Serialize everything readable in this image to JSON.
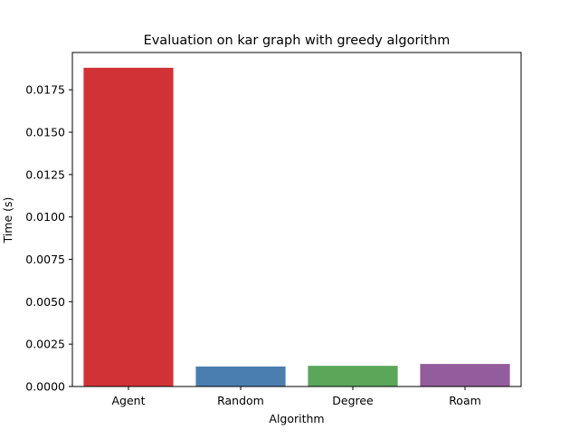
{
  "chart_data": {
    "type": "bar",
    "title": "Evaluation on kar graph with greedy algorithm",
    "xlabel": "Algorithm",
    "ylabel": "Time (s)",
    "categories": [
      "Agent",
      "Random",
      "Degree",
      "Roam"
    ],
    "values": [
      0.0188,
      0.00118,
      0.00122,
      0.00133
    ],
    "colors": [
      "#d03235",
      "#4a7eb0",
      "#5aa75a",
      "#935c9c"
    ],
    "ylim": [
      0,
      0.0197
    ],
    "yticks": [
      0.0,
      0.0025,
      0.005,
      0.0075,
      0.01,
      0.0125,
      0.015,
      0.0175
    ],
    "ytick_labels": [
      "0.0000",
      "0.0025",
      "0.0050",
      "0.0075",
      "0.0100",
      "0.0125",
      "0.0150",
      "0.0175"
    ],
    "grid": false,
    "legend": "none"
  }
}
